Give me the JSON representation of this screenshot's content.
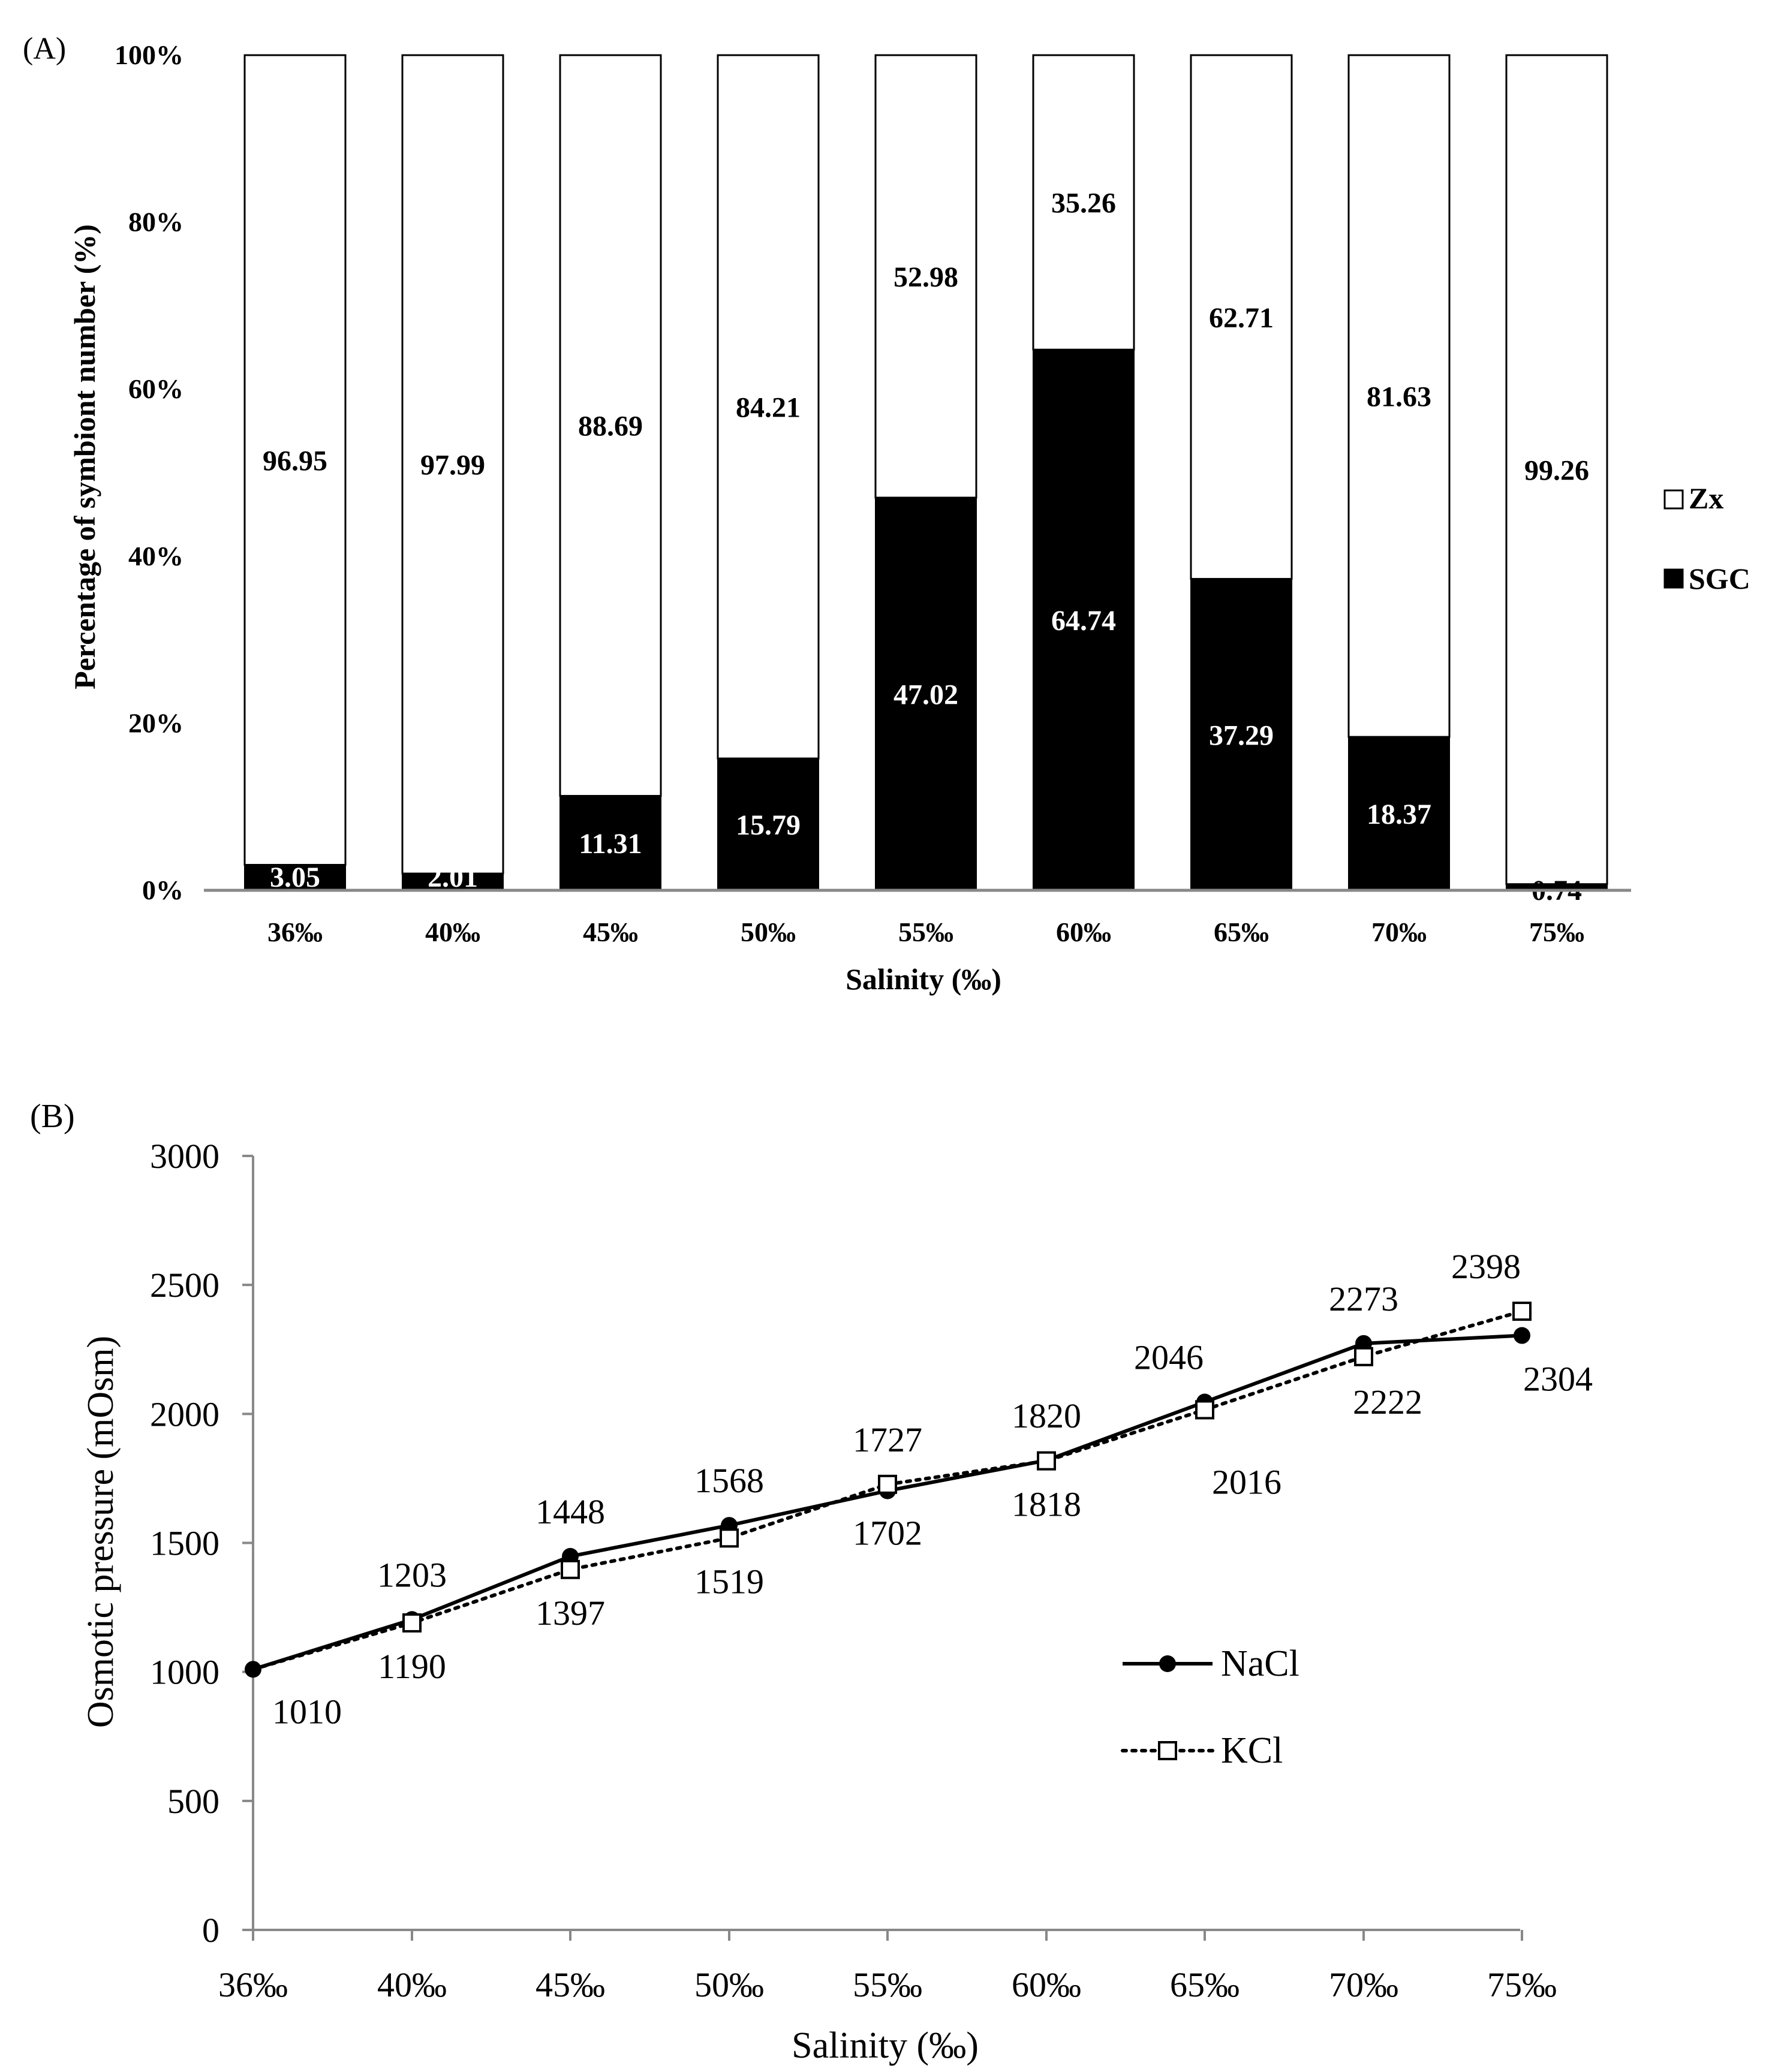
{
  "chart_data": [
    {
      "panel_label": "(A)",
      "type": "bar",
      "stacked": true,
      "xlabel": "Salinity (‰)",
      "ylabel": "Percentage of symbiont number (%)",
      "ylim": [
        0,
        100
      ],
      "yticks": [
        "0%",
        "20%",
        "40%",
        "60%",
        "80%",
        "100%"
      ],
      "categories": [
        "36‰",
        "40‰",
        "45‰",
        "50‰",
        "55‰",
        "60‰",
        "65‰",
        "70‰",
        "75‰"
      ],
      "series": [
        {
          "name": "SGC",
          "color": "#000000",
          "values": [
            3.05,
            2.01,
            11.31,
            15.79,
            47.02,
            64.74,
            37.29,
            18.37,
            0.74
          ],
          "labels": [
            "3.05",
            "2.01",
            "11.31",
            "15.79",
            "47.02",
            "64.74",
            "37.29",
            "18.37",
            "0.74"
          ]
        },
        {
          "name": "Zx",
          "color": "#ffffff",
          "values": [
            96.95,
            97.99,
            88.69,
            84.21,
            52.98,
            35.26,
            62.71,
            81.63,
            99.26
          ],
          "labels": [
            "96.95",
            "97.99",
            "88.69",
            "84.21",
            "52.98",
            "35.26",
            "62.71",
            "81.63",
            "99.26"
          ]
        }
      ],
      "legend": {
        "placement": "right",
        "items": [
          "Zx",
          "SGC"
        ]
      }
    },
    {
      "panel_label": "(B)",
      "type": "line",
      "xlabel": "Salinity (‰)",
      "ylabel": "Osmotic pressure (mOsm)",
      "ylim": [
        0,
        3000
      ],
      "yticks": [
        "0",
        "500",
        "1000",
        "1500",
        "2000",
        "2500",
        "3000"
      ],
      "categories": [
        "36‰",
        "40‰",
        "45‰",
        "50‰",
        "55‰",
        "60‰",
        "65‰",
        "70‰",
        "75‰"
      ],
      "series": [
        {
          "name": "NaCl",
          "style": "solid",
          "marker": "filled-circle",
          "values": [
            1010,
            1203,
            1448,
            1568,
            1702,
            1820,
            2046,
            2273,
            2304
          ],
          "labels": [
            "1010",
            "1203",
            "1448",
            "1568",
            "1702",
            "1820",
            "2046",
            "2273",
            "2304"
          ]
        },
        {
          "name": "KCl",
          "style": "dotted",
          "marker": "open-square",
          "values": [
            1010,
            1190,
            1397,
            1519,
            1727,
            1818,
            2016,
            2222,
            2398
          ],
          "labels": [
            "",
            "1190",
            "1397",
            "1519",
            "1727",
            "1818",
            "2016",
            "2222",
            "2398"
          ]
        }
      ],
      "legend": {
        "placement": "center-right",
        "items": [
          "NaCl",
          "KCl"
        ]
      }
    }
  ]
}
